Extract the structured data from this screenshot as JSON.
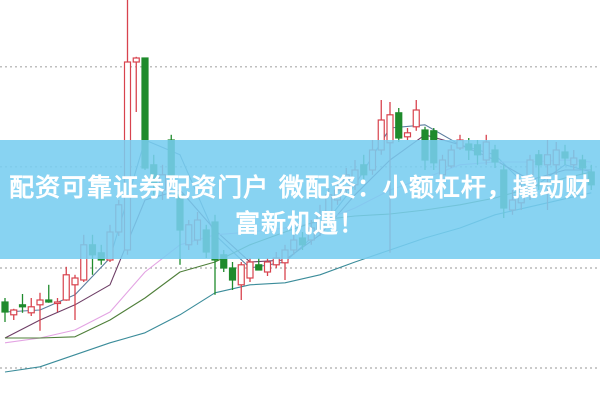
{
  "banner": {
    "line1": "配资可靠证券配资门户 微配资：小额杠杆，撬动财",
    "line2": "富新机遇！",
    "background": "#78cdf0",
    "text_color": "#ffffff"
  },
  "chart_data": {
    "type": "candlestick",
    "title": "",
    "grid": true,
    "grid_levels": [
      83.3,
      58.3,
      33.0,
      8.0
    ],
    "ylim": [
      0,
      100
    ],
    "colors": {
      "up": "#d8434e",
      "down": "#1f8b2c",
      "grid": "#aaaaaa"
    },
    "candles": [
      [
        24.5,
        25.5,
        19.5,
        22
      ],
      [
        21.3,
        22.8,
        20,
        22.5
      ],
      [
        23.8,
        26.5,
        21.8,
        23.3
      ],
      [
        21.8,
        25.5,
        21,
        23.3
      ],
      [
        23.8,
        26.8,
        17.3,
        25
      ],
      [
        25,
        28.8,
        24.3,
        24.5
      ],
      [
        24.3,
        25.5,
        22,
        24.5
      ],
      [
        25,
        33.3,
        24.8,
        31.3
      ],
      [
        28.8,
        31.3,
        20,
        30.5
      ],
      [
        30,
        41.3,
        29.5,
        38.8
      ],
      [
        38.8,
        41.3,
        31.3,
        36.3
      ],
      [
        36.8,
        38.8,
        33.8,
        35
      ],
      [
        35,
        43.8,
        34.5,
        42
      ],
      [
        42,
        50,
        41,
        48.8
      ],
      [
        37.5,
        100,
        36.3,
        84.5
      ],
      [
        84.5,
        85.8,
        72,
        85.5
      ],
      [
        85.5,
        85.5,
        57.5,
        58
      ],
      [
        58.8,
        61.3,
        51.3,
        53.8
      ],
      [
        52.5,
        58.8,
        50,
        56.3
      ],
      [
        65,
        66.3,
        55,
        56.3
      ],
      [
        51.3,
        52.5,
        33.8,
        42.5
      ],
      [
        38.8,
        45,
        37.5,
        43.8
      ],
      [
        40,
        47,
        38.8,
        45
      ],
      [
        42.5,
        43.8,
        35.5,
        37
      ],
      [
        44.5,
        46.3,
        26.3,
        35
      ],
      [
        36.3,
        37.5,
        32,
        33
      ],
      [
        33,
        34.5,
        27.5,
        30
      ],
      [
        28.8,
        34.5,
        25,
        33.8
      ],
      [
        30.5,
        35.5,
        29.5,
        34.5
      ],
      [
        33.8,
        35.5,
        32.5,
        32.5
      ],
      [
        32,
        35.5,
        31,
        34.5
      ],
      [
        33.8,
        37,
        33,
        35.5
      ],
      [
        34.3,
        38.8,
        30,
        37.5
      ],
      [
        37.5,
        41.3,
        36.3,
        40
      ],
      [
        40.5,
        42,
        37.5,
        38.8
      ],
      [
        40,
        45,
        38.8,
        43
      ],
      [
        42,
        48.8,
        41,
        46.3
      ],
      [
        47,
        53,
        46.3,
        51.3
      ],
      [
        50,
        54.5,
        48.8,
        52.5
      ],
      [
        52.5,
        58,
        51.3,
        56.3
      ],
      [
        53.8,
        60,
        52.5,
        57.5
      ],
      [
        58.8,
        61.3,
        55,
        56.3
      ],
      [
        57.5,
        65,
        56.3,
        62.5
      ],
      [
        62.5,
        75,
        61.3,
        70
      ],
      [
        64.3,
        74.5,
        36.8,
        71.3
      ],
      [
        71.8,
        73,
        64.5,
        65.5
      ],
      [
        65.8,
        68,
        65,
        66.8
      ],
      [
        68.3,
        75,
        67.3,
        72.5
      ],
      [
        67.5,
        68.3,
        57.5,
        60
      ],
      [
        67.3,
        68,
        57.5,
        59.3
      ],
      [
        56.3,
        61.3,
        55,
        60
      ],
      [
        58.5,
        63.8,
        58,
        62.5
      ],
      [
        63,
        66.3,
        62.5,
        65
      ],
      [
        64,
        65.5,
        60,
        62.5
      ],
      [
        63.8,
        65,
        58.8,
        61.3
      ],
      [
        60,
        66.3,
        58.8,
        64.5
      ],
      [
        62.5,
        63.8,
        58,
        59.5
      ],
      [
        57.5,
        58.8,
        45.5,
        48
      ],
      [
        47.5,
        52.5,
        46.3,
        50
      ],
      [
        49.3,
        55,
        47.5,
        52.5
      ],
      [
        52.5,
        61.3,
        50,
        60
      ],
      [
        61.3,
        62.5,
        52.5,
        58.8
      ],
      [
        58.8,
        65,
        47.5,
        61.3
      ],
      [
        58.8,
        64.5,
        56.3,
        62.5
      ],
      [
        62,
        63.8,
        58.8,
        60.5
      ],
      [
        58.8,
        62.5,
        57.5,
        60.5
      ],
      [
        60,
        61.3,
        56.3,
        58
      ],
      [
        57,
        58.8,
        52.5,
        53.8
      ]
    ],
    "moving_averages": {
      "sample_indices": [
        0,
        4,
        8,
        12,
        16,
        20,
        24,
        28,
        32,
        36,
        40,
        44,
        48,
        52,
        56,
        60,
        64,
        67
      ],
      "lines": [
        {
          "color": "#5b7d9e",
          "values": [
            22,
            22.5,
            26.3,
            35.5,
            65,
            61.3,
            41.3,
            33,
            34.5,
            42.5,
            53.8,
            68,
            68.8,
            63.8,
            61.3,
            52.5,
            58.8,
            57
          ]
        },
        {
          "color": "#6e3e66",
          "values": [
            15.5,
            20,
            23.8,
            28.8,
            50,
            52.5,
            42.5,
            34.5,
            35,
            41.3,
            51.3,
            60,
            66.3,
            63.8,
            60,
            55,
            57.5,
            57.5
          ]
        },
        {
          "color": "#e3a3e3",
          "values": [
            14.3,
            15.5,
            17.5,
            22,
            32,
            38.8,
            41.3,
            42,
            43,
            44.5,
            48,
            52.5,
            55.5,
            58.8,
            59.5,
            59.5,
            60,
            59.5
          ]
        },
        {
          "color": "#4f7f3a",
          "values": [
            15.5,
            15.5,
            15.8,
            20,
            25.5,
            32,
            34.5,
            38.8,
            42,
            45,
            46,
            46.5,
            47.5,
            48.8,
            50.5,
            53,
            55.5,
            57
          ]
        },
        {
          "color": "#3b8c9a",
          "values": [
            7,
            8.3,
            11.3,
            14.3,
            16.8,
            21.3,
            26.8,
            28.8,
            29.3,
            31.3,
            34.5,
            37.5,
            40.5,
            43,
            46.3,
            48.3,
            50.3,
            51.8
          ]
        }
      ]
    }
  }
}
